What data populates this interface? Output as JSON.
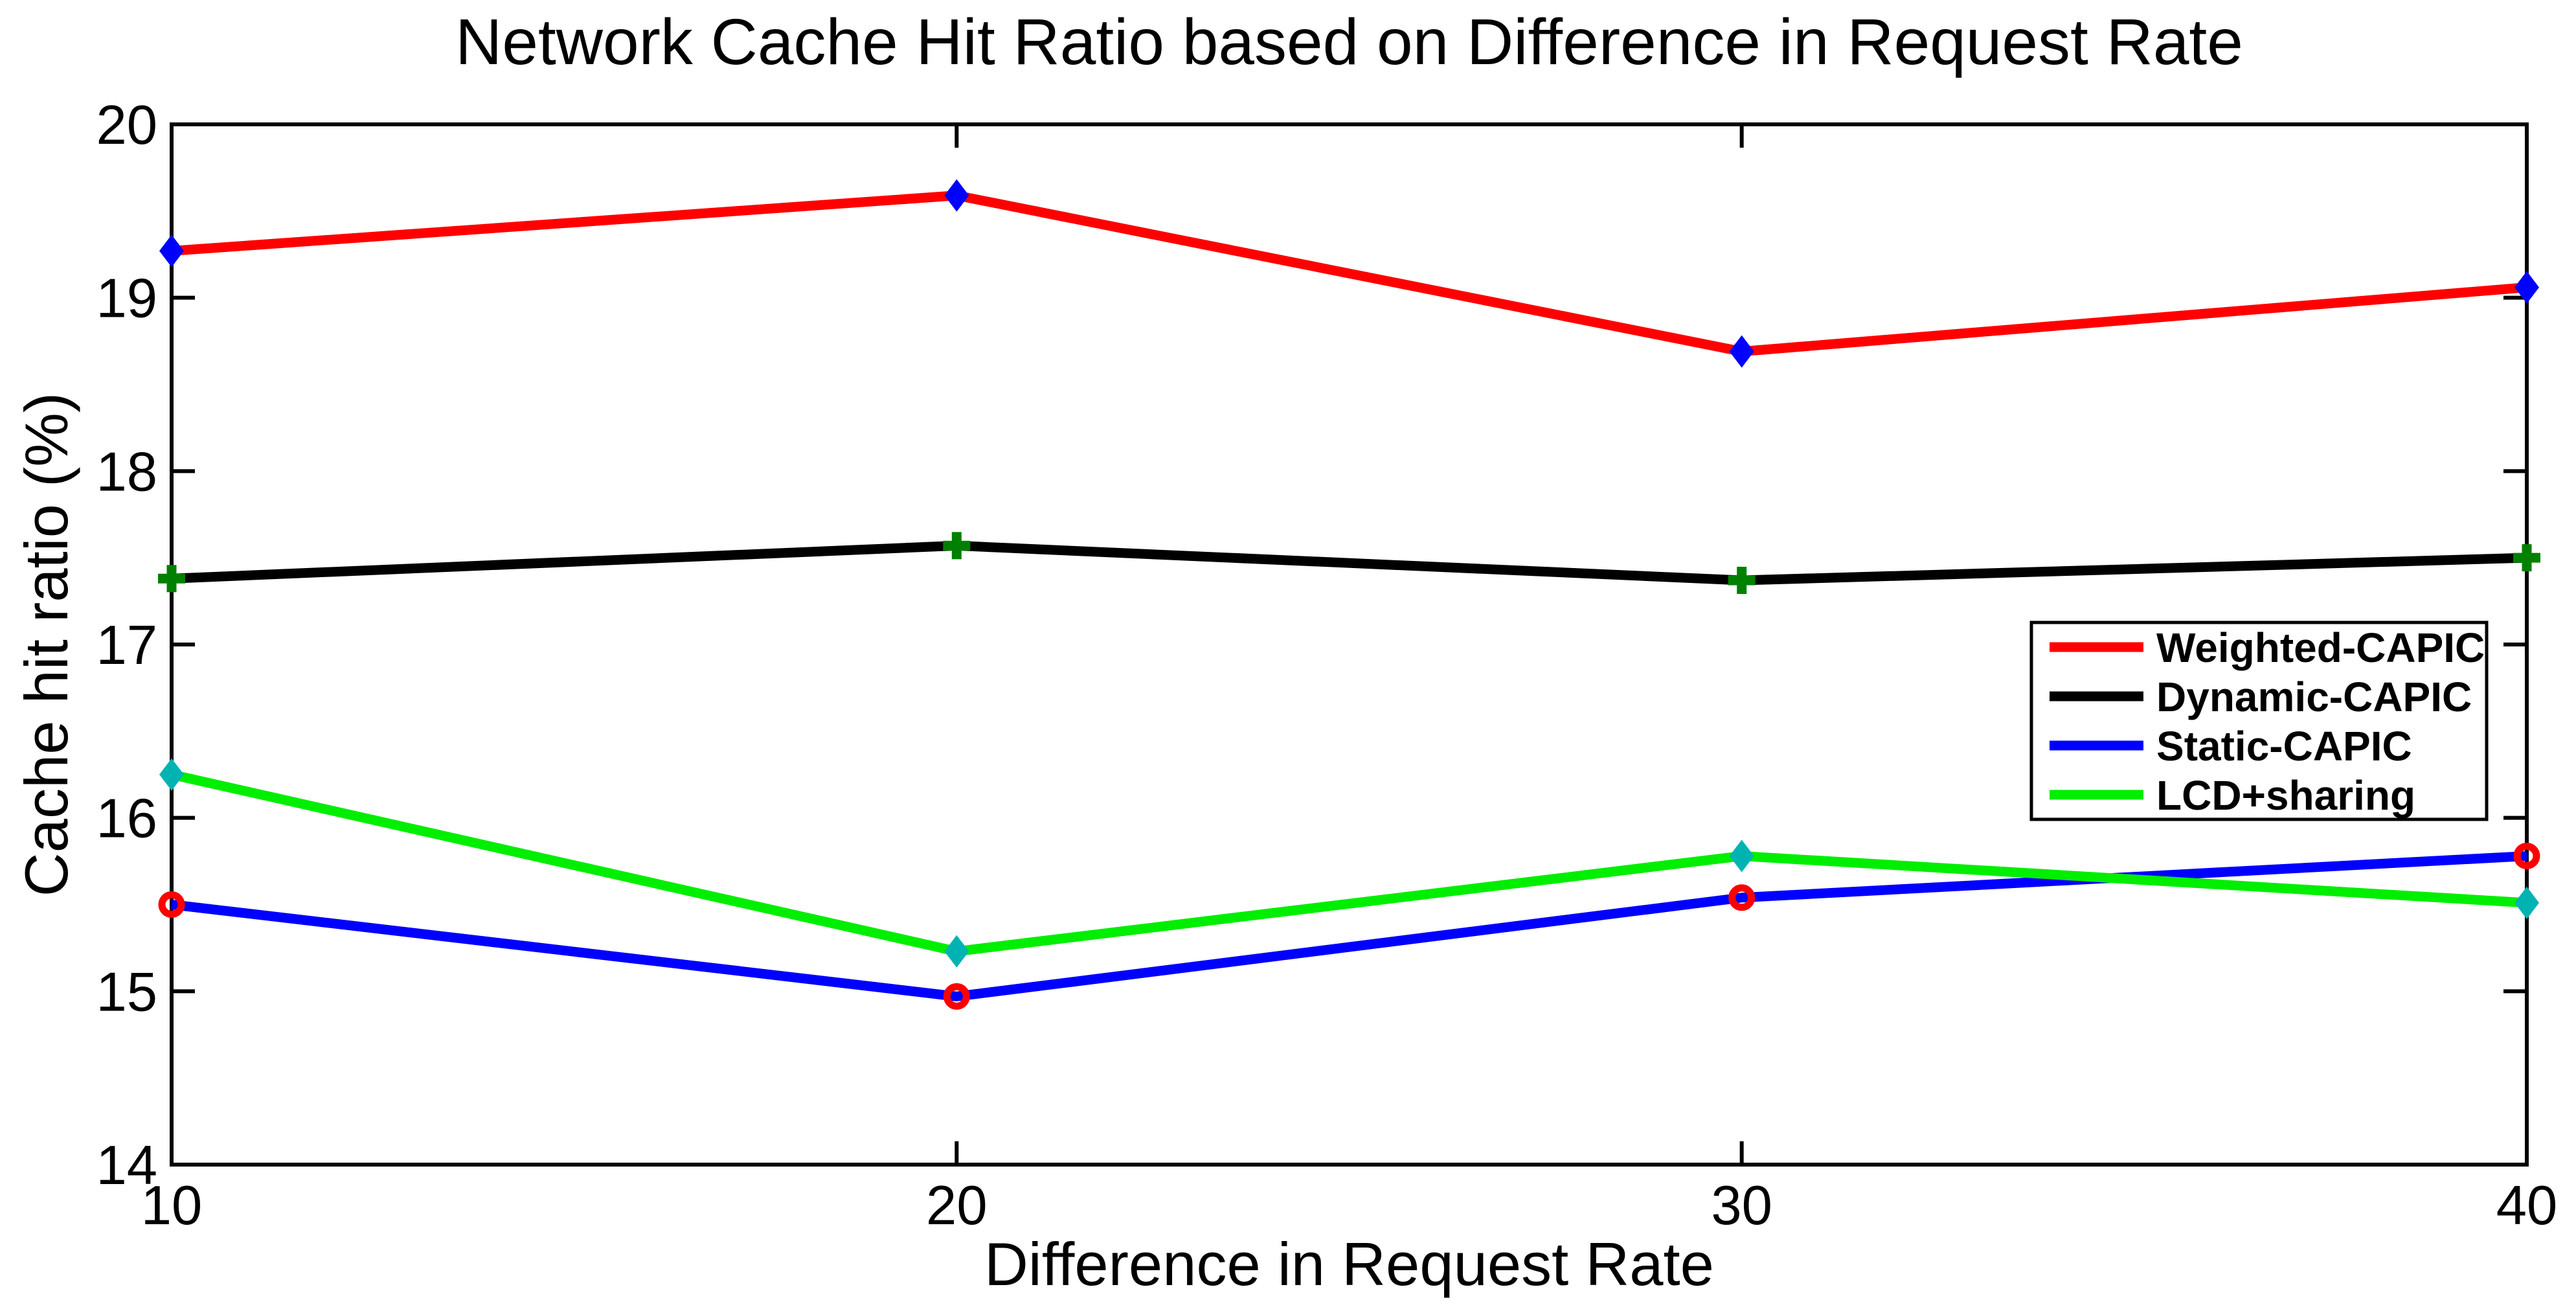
{
  "title": "Network Cache Hit Ratio based on Difference in Request Rate",
  "chart_data": {
    "type": "line",
    "title": "Network Cache Hit Ratio based on Difference in Request Rate",
    "xlabel": "Difference in Request Rate",
    "ylabel": "Cache hit ratio (%)",
    "x": [
      10,
      20,
      30,
      40
    ],
    "xlim": [
      10,
      40
    ],
    "ylim": [
      14,
      20
    ],
    "xticks": [
      "10",
      "20",
      "30",
      "40"
    ],
    "yticks": [
      "14",
      "15",
      "16",
      "17",
      "18",
      "19",
      "20"
    ],
    "grid": false,
    "background": "#ffffff",
    "axis_color": "#000000",
    "legend_position": "inside-right-middle",
    "series": [
      {
        "name": "Weighted-CAPIC",
        "color": "#ff0000",
        "marker": "diamond",
        "marker_color": "#0000ff",
        "values": [
          19.27,
          19.59,
          18.69,
          19.06
        ]
      },
      {
        "name": "Dynamic-CAPIC",
        "color": "#000000",
        "marker": "plus",
        "marker_color": "#008000",
        "values": [
          17.38,
          17.57,
          17.37,
          17.5
        ]
      },
      {
        "name": "Static-CAPIC",
        "color": "#0000ff",
        "marker": "circle-open",
        "marker_color": "#ff0000",
        "values": [
          15.5,
          14.97,
          15.54,
          15.78
        ]
      },
      {
        "name": "LCD+sharing",
        "color": "#00ee00",
        "marker": "diamond",
        "marker_color": "#00b3b3",
        "values": [
          16.25,
          15.23,
          15.78,
          15.51
        ]
      }
    ]
  }
}
